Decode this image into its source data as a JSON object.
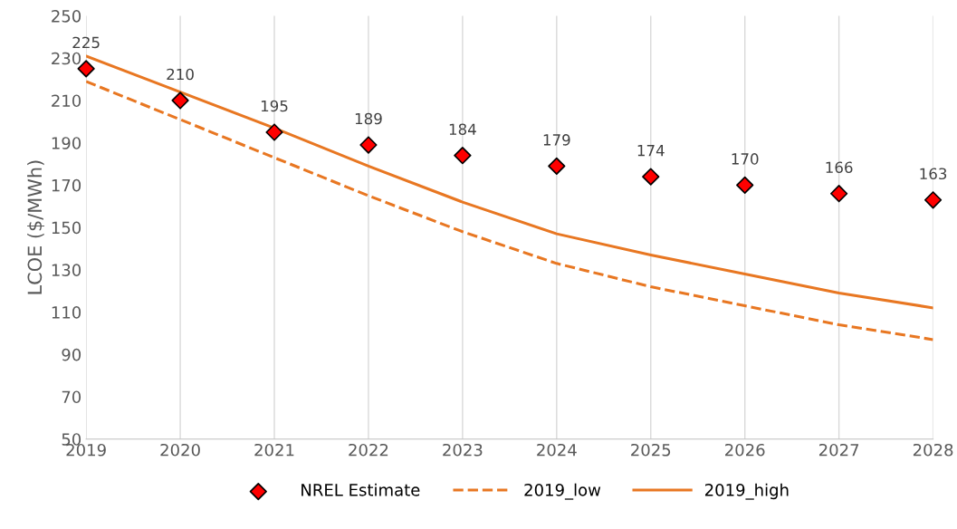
{
  "chart_data": {
    "type": "line",
    "ylabel": "LCOE ($/MWh)",
    "x": [
      2019,
      2020,
      2021,
      2022,
      2023,
      2024,
      2025,
      2026,
      2027,
      2028
    ],
    "xlim": [
      2019,
      2028
    ],
    "xticks": [
      2019,
      2020,
      2021,
      2022,
      2023,
      2024,
      2025,
      2026,
      2027,
      2028
    ],
    "ylim": [
      50,
      250
    ],
    "yticks": [
      50,
      70,
      90,
      110,
      130,
      150,
      170,
      190,
      210,
      230,
      250
    ],
    "grid": "x",
    "legend": "bottom",
    "series": [
      {
        "name": "NREL Estimate",
        "type": "scatter",
        "marker": "diamond",
        "color": "#ff0000",
        "data_labels": true,
        "values": [
          225,
          210,
          195,
          189,
          184,
          179,
          174,
          170,
          166,
          163
        ]
      },
      {
        "name": "2019_low",
        "line_style": "dashed",
        "color": "#e87722",
        "values": [
          219,
          201,
          183,
          165,
          148,
          133,
          122,
          113,
          104,
          97
        ]
      },
      {
        "name": "2019_high",
        "line_style": "solid",
        "color": "#e87722",
        "values": [
          231,
          214,
          197,
          179,
          162,
          147,
          137,
          128,
          119,
          112
        ]
      }
    ]
  }
}
